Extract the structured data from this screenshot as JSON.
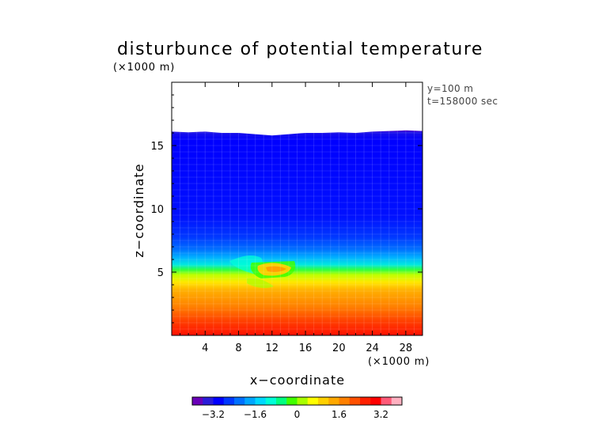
{
  "chart_data": {
    "type": "heatmap",
    "title": "disturbunce of potential temperature",
    "y_unit": "(×1000 m)",
    "x_unit": "(×1000 m)",
    "xlabel": "x−coordinate",
    "ylabel": "z−coordinate",
    "annotations": [
      "y=100 m",
      "t=158000 sec"
    ],
    "xlim": [
      0,
      30
    ],
    "ylim": [
      0,
      20
    ],
    "x_ticks": [
      4,
      8,
      12,
      16,
      20,
      24,
      28
    ],
    "y_ticks": [
      5,
      10,
      15
    ],
    "x_tick_labels": [
      "4",
      "8",
      "12",
      "16",
      "20",
      "24",
      "28"
    ],
    "y_tick_labels": [
      "5",
      "10",
      "15"
    ],
    "field_top_km": [
      16.1,
      16.05,
      16.1,
      16.0,
      16.0,
      15.9,
      15.8,
      15.9,
      16.0,
      16.0,
      16.05,
      16.0,
      16.1,
      16.15,
      16.2,
      16.15
    ],
    "colorbar": {
      "range": [
        -4,
        4
      ],
      "ticks": [
        -3.2,
        -1.6,
        0,
        1.6,
        3.2
      ],
      "tick_labels": [
        "−3.2",
        "−1.6",
        "0",
        "1.6",
        "3.2"
      ],
      "colors": [
        "#6a00b8",
        "#2a1cd8",
        "#0000ff",
        "#0038ff",
        "#0070ff",
        "#00a6ff",
        "#00d8ff",
        "#00ffd8",
        "#00ff80",
        "#40ff00",
        "#a8ff00",
        "#ffff00",
        "#ffd000",
        "#ffa800",
        "#ff8000",
        "#ff5000",
        "#ff2000",
        "#ff0000",
        "#ff5a78",
        "#ffb0c0"
      ]
    }
  }
}
